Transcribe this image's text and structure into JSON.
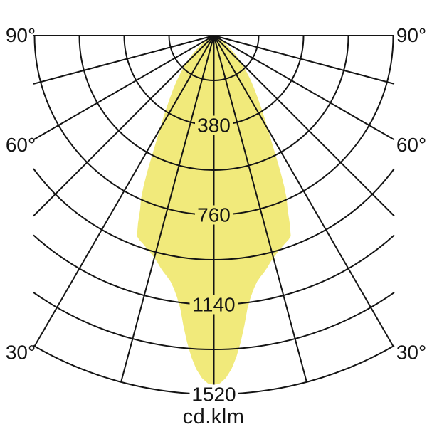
{
  "chart_data": {
    "type": "polar",
    "subtype": "luminous-intensity-distribution-curve",
    "unit_label": "cd.klm",
    "background": "#ffffff",
    "angle_tick_degrees": [
      90,
      60,
      30
    ],
    "angle_tick_labels_left": [
      "90°",
      "60°",
      "30°"
    ],
    "angle_tick_labels_right": [
      "90°",
      "60°",
      "30°"
    ],
    "angle_grid_step_deg": 15,
    "ring_step": 190,
    "ring_count": 8,
    "r_max": 1520,
    "radial_tick_values": [
      380,
      760,
      1140,
      1520
    ],
    "radial_tick_labels": [
      "380",
      "760",
      "1140",
      "1520"
    ],
    "labeled_ring_indices": [
      2,
      4,
      6,
      8
    ],
    "grid_on": true,
    "symmetric": true,
    "colors": {
      "beam_fill": "#F1EA7B",
      "grid": "#141414",
      "text": "#141414",
      "halo_inner": "#F1EA7B",
      "halo_outer": "#ffffff"
    },
    "beam_profile": [
      [
        -78,
        0
      ],
      [
        -75,
        1
      ],
      [
        -72,
        3
      ],
      [
        -69,
        7
      ],
      [
        -66,
        13
      ],
      [
        -63,
        22
      ],
      [
        -60,
        34
      ],
      [
        -58,
        44
      ],
      [
        -56,
        56
      ],
      [
        -54,
        70
      ],
      [
        -52,
        88
      ],
      [
        -50,
        108
      ],
      [
        -48,
        130
      ],
      [
        -46,
        154
      ],
      [
        -44,
        180
      ],
      [
        -42,
        208
      ],
      [
        -40,
        238
      ],
      [
        -39,
        254
      ],
      [
        -38,
        270
      ],
      [
        -37,
        288
      ],
      [
        -36,
        306
      ],
      [
        -35,
        326
      ],
      [
        -34,
        348
      ],
      [
        -33,
        372
      ],
      [
        -32,
        398
      ],
      [
        -31,
        426
      ],
      [
        -30,
        458
      ],
      [
        -29,
        494
      ],
      [
        -28,
        536
      ],
      [
        -27,
        588
      ],
      [
        -26,
        645
      ],
      [
        -25,
        706
      ],
      [
        -24,
        760
      ],
      [
        -23,
        800
      ],
      [
        -22,
        858
      ],
      [
        -21,
        910
      ],
      [
        -20,
        922
      ],
      [
        -19,
        930
      ],
      [
        -18,
        940
      ],
      [
        -17,
        950
      ],
      [
        -16,
        962
      ],
      [
        -15,
        975
      ],
      [
        -14,
        990
      ],
      [
        -13,
        1008
      ],
      [
        -12,
        1025
      ],
      [
        -11,
        1040
      ],
      [
        -10,
        1058
      ],
      [
        -9,
        1085
      ],
      [
        -8,
        1120
      ],
      [
        -7,
        1166
      ],
      [
        -6,
        1236
      ],
      [
        -5,
        1304
      ],
      [
        -4,
        1366
      ],
      [
        -3,
        1416
      ],
      [
        -2,
        1452
      ],
      [
        -1,
        1474
      ],
      [
        0,
        1480
      ],
      [
        1,
        1474
      ],
      [
        2,
        1452
      ],
      [
        3,
        1416
      ],
      [
        4,
        1366
      ],
      [
        5,
        1304
      ],
      [
        6,
        1236
      ],
      [
        7,
        1166
      ],
      [
        8,
        1120
      ],
      [
        9,
        1085
      ],
      [
        10,
        1058
      ],
      [
        11,
        1040
      ],
      [
        12,
        1025
      ],
      [
        13,
        1008
      ],
      [
        14,
        990
      ],
      [
        15,
        975
      ],
      [
        16,
        962
      ],
      [
        17,
        950
      ],
      [
        18,
        940
      ],
      [
        19,
        930
      ],
      [
        20,
        922
      ],
      [
        21,
        910
      ],
      [
        22,
        858
      ],
      [
        23,
        800
      ],
      [
        24,
        760
      ],
      [
        25,
        706
      ],
      [
        26,
        645
      ],
      [
        27,
        588
      ],
      [
        28,
        536
      ],
      [
        29,
        494
      ],
      [
        30,
        458
      ],
      [
        31,
        426
      ],
      [
        32,
        398
      ],
      [
        33,
        372
      ],
      [
        34,
        348
      ],
      [
        35,
        326
      ],
      [
        36,
        306
      ],
      [
        37,
        288
      ],
      [
        38,
        270
      ],
      [
        39,
        254
      ],
      [
        40,
        238
      ],
      [
        42,
        208
      ],
      [
        44,
        180
      ],
      [
        46,
        154
      ],
      [
        48,
        130
      ],
      [
        50,
        108
      ],
      [
        52,
        88
      ],
      [
        54,
        70
      ],
      [
        56,
        56
      ],
      [
        58,
        44
      ],
      [
        60,
        34
      ],
      [
        63,
        22
      ],
      [
        66,
        13
      ],
      [
        69,
        7
      ],
      [
        72,
        3
      ],
      [
        75,
        1
      ],
      [
        78,
        0
      ]
    ]
  }
}
